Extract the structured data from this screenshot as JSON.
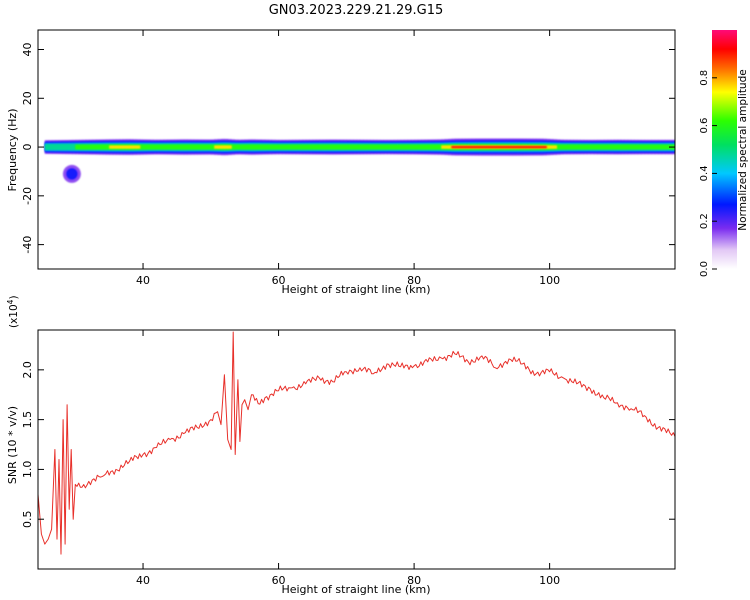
{
  "title": "GN03.2023.229.21.29.G15",
  "colors": {
    "snr_line": "#e8302a",
    "axis": "#000000"
  },
  "chart_data": [
    {
      "type": "heatmap",
      "xlabel": "Height of straight line (km)",
      "ylabel": "Frequency (Hz)",
      "xlim": [
        24.5,
        118.5
      ],
      "ylim": [
        -50,
        48
      ],
      "x_ticks": [
        40,
        60,
        80,
        100
      ],
      "y_ticks": [
        -40,
        -20,
        0,
        20,
        40
      ],
      "y_tick_labels": [
        "-40",
        "-20",
        "0",
        "20",
        "40"
      ],
      "colorbar": {
        "label": "Normalized spectral amplitude",
        "range": [
          0,
          1
        ],
        "ticks": [
          0.0,
          0.2,
          0.4,
          0.6,
          0.8
        ],
        "tick_labels": [
          "0.0",
          "0.2",
          "0.4",
          "0.6",
          "0.8"
        ],
        "colormap": "rainbow"
      },
      "band": {
        "center_frequency_hz": 0,
        "x_start": 25.5,
        "x_end": 118.5,
        "amplitude_profile": {
          "x": [
            26,
            30,
            35,
            38,
            42,
            46,
            50,
            52,
            54,
            56,
            60,
            64,
            68,
            72,
            76,
            80,
            84,
            86,
            90,
            95,
            99,
            102,
            106,
            110,
            114,
            118
          ],
          "amplitude": [
            0.45,
            0.55,
            0.7,
            0.75,
            0.6,
            0.7,
            0.65,
            0.85,
            0.6,
            0.7,
            0.55,
            0.6,
            0.65,
            0.6,
            0.55,
            0.6,
            0.7,
            0.9,
            0.95,
            0.95,
            0.9,
            0.6,
            0.55,
            0.6,
            0.55,
            0.55
          ]
        }
      },
      "blobs": [
        {
          "x": 29.5,
          "y": -11,
          "amplitude": 0.25,
          "label": ""
        }
      ]
    },
    {
      "type": "line",
      "xlabel": "Height of straight line (km)",
      "ylabel": "SNR (10 * v/v)",
      "multiplier_label": "(x10",
      "multiplier_exp": "4",
      "xlim": [
        24.5,
        118.5
      ],
      "ylim": [
        0,
        24000
      ],
      "x_ticks": [
        40,
        60,
        80,
        100
      ],
      "y_ticks": [
        5000,
        10000,
        15000,
        20000
      ],
      "y_tick_labels": [
        "0.5",
        "1.0",
        "1.5",
        "2.0"
      ],
      "series": [
        {
          "x": [
            24.5,
            25,
            25.5,
            26,
            26.5,
            27,
            27.3,
            27.6,
            27.9,
            28.2,
            28.5,
            28.8,
            29.1,
            29.4,
            29.7,
            30,
            31,
            32,
            34,
            36,
            38,
            40,
            42,
            44,
            46,
            48,
            50,
            51,
            51.5,
            52,
            52.5,
            53,
            53.3,
            53.6,
            54,
            54.3,
            54.6,
            55,
            55.5,
            56,
            57,
            58,
            60,
            62,
            64,
            66,
            68,
            70,
            72,
            74,
            76,
            78,
            80,
            82,
            84,
            86,
            88,
            90,
            92,
            94,
            96,
            98,
            100,
            102,
            104,
            106,
            108,
            110,
            112,
            114,
            116,
            118.5
          ],
          "y": [
            7500,
            3500,
            2500,
            3000,
            4000,
            12000,
            3000,
            11000,
            1500,
            15000,
            2500,
            16500,
            6000,
            12000,
            5000,
            8500,
            8200,
            8800,
            9300,
            10000,
            10800,
            11500,
            12200,
            13000,
            13600,
            14200,
            15000,
            15800,
            14500,
            19500,
            13000,
            12000,
            23800,
            11500,
            19000,
            12800,
            16500,
            17000,
            16000,
            17500,
            16600,
            17200,
            17900,
            18200,
            18600,
            19200,
            18800,
            19800,
            20200,
            19600,
            20600,
            20300,
            20400,
            20800,
            21200,
            21600,
            20800,
            21400,
            20200,
            21100,
            20600,
            19600,
            19800,
            19200,
            18600,
            18100,
            17200,
            16700,
            16100,
            15400,
            14200,
            13300
          ]
        }
      ]
    }
  ]
}
